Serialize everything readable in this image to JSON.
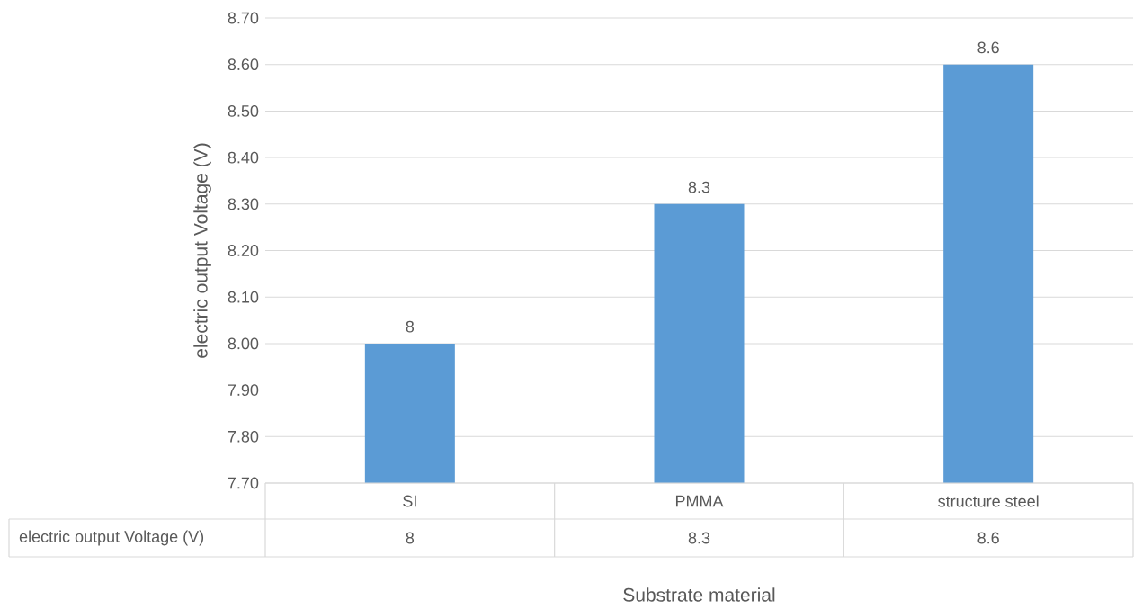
{
  "chart_data": {
    "type": "bar",
    "xlabel": "Substrate material",
    "ylabel": "electric output Voltage (V)",
    "categories": [
      "SI",
      "PMMA",
      "structure steel"
    ],
    "series": [
      {
        "name": "electric output Voltage (V)",
        "color": "#5b9bd5",
        "values": [
          8,
          8.3,
          8.6
        ],
        "value_labels": [
          "8",
          "8.3",
          "8.6"
        ]
      }
    ],
    "ylim": [
      7.7,
      8.7
    ],
    "yticks": [
      {
        "value": 7.7,
        "label": "7.70"
      },
      {
        "value": 7.8,
        "label": "7.80"
      },
      {
        "value": 7.9,
        "label": "7.90"
      },
      {
        "value": 8.0,
        "label": "8.00"
      },
      {
        "value": 8.1,
        "label": "8.10"
      },
      {
        "value": 8.2,
        "label": "8.20"
      },
      {
        "value": 8.3,
        "label": "8.30"
      },
      {
        "value": 8.4,
        "label": "8.40"
      },
      {
        "value": 8.5,
        "label": "8.50"
      },
      {
        "value": 8.6,
        "label": "8.60"
      },
      {
        "value": 8.7,
        "label": "8.70"
      }
    ],
    "grid": "y",
    "data_labels": true,
    "legend": false
  }
}
